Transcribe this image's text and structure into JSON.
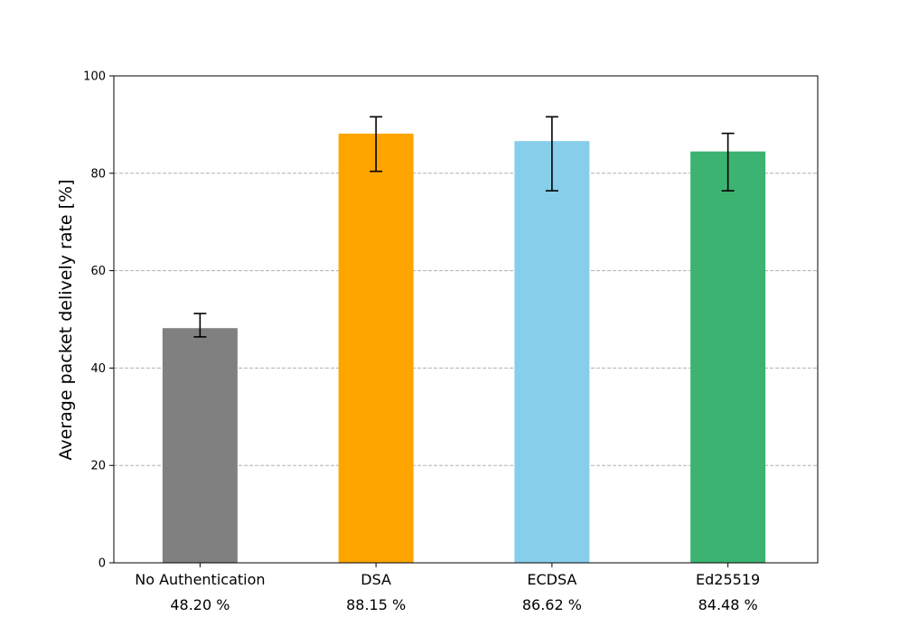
{
  "chart_data": {
    "type": "bar",
    "title": "",
    "xlabel": "",
    "ylabel": "Average packet delively rate [%]",
    "ylim": [
      0,
      100
    ],
    "yticks": [
      0,
      20,
      40,
      60,
      80,
      100
    ],
    "grid": "y-dashed",
    "categories": [
      "No Authentication",
      "DSA",
      "ECDSA",
      "Ed25519"
    ],
    "values": [
      48.2,
      88.15,
      86.62,
      84.48
    ],
    "value_labels": [
      "48.20 %",
      "88.15 %",
      "86.62 %",
      "84.48 %"
    ],
    "error_low": [
      46.4,
      80.4,
      76.4,
      76.4
    ],
    "error_high": [
      51.2,
      91.6,
      91.6,
      88.2
    ],
    "colors": [
      "#808080",
      "#FFA500",
      "#87CEEB",
      "#3CB371"
    ]
  }
}
